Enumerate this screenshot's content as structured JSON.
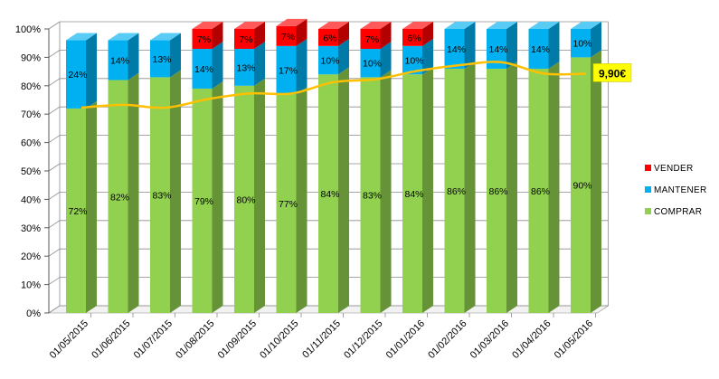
{
  "chart_data": {
    "type": "bar",
    "stacked": true,
    "three_d": true,
    "categories": [
      "01/05/2015",
      "01/06/2015",
      "01/07/2015",
      "01/08/2015",
      "01/09/2015",
      "01/10/2015",
      "01/11/2015",
      "01/12/2015",
      "01/01/2016",
      "01/02/2016",
      "01/03/2016",
      "01/04/2016",
      "01/05/2016"
    ],
    "series": [
      {
        "name": "COMPRAR",
        "color": "#92D050",
        "values": [
          72,
          82,
          83,
          79,
          80,
          77,
          84,
          83,
          84,
          86,
          86,
          86,
          90
        ],
        "labels": [
          "72%",
          "82%",
          "83%",
          "79%",
          "80%",
          "77%",
          "84%",
          "83%",
          "84%",
          "86%",
          "86%",
          "86%",
          "90%"
        ]
      },
      {
        "name": "MANTENER",
        "color": "#00B0F0",
        "values": [
          24,
          14,
          13,
          14,
          13,
          17,
          10,
          10,
          10,
          14,
          14,
          14,
          10
        ],
        "labels": [
          "24%",
          "14%",
          "13%",
          "14%",
          "13%",
          "17%",
          "10%",
          "10%",
          "10%",
          "14%",
          "14%",
          "14%",
          "10%"
        ]
      },
      {
        "name": "VENDER",
        "color": "#FF0000",
        "values": [
          0,
          0,
          0,
          7,
          7,
          7,
          6,
          7,
          6,
          0,
          0,
          0,
          0
        ],
        "labels": [
          "",
          "",
          "",
          "7%",
          "7%",
          "7%",
          "6%",
          "7%",
          "6%",
          "",
          "",
          "",
          ""
        ]
      }
    ],
    "line": {
      "color": "#FFC000",
      "values": [
        71,
        72,
        71,
        74,
        76,
        76,
        80,
        81,
        84,
        86,
        87,
        83,
        83
      ],
      "callout": "9,90€",
      "callout_bg": "#FFFF00"
    },
    "yticks": [
      "0%",
      "10%",
      "20%",
      "30%",
      "40%",
      "50%",
      "60%",
      "70%",
      "80%",
      "90%",
      "100%"
    ],
    "ylim": [
      0,
      100
    ],
    "grid": true,
    "legend_position": "right"
  }
}
